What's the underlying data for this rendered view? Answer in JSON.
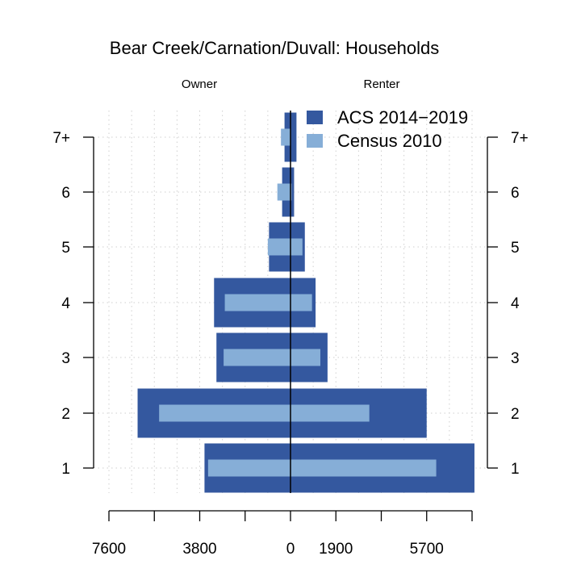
{
  "chart_data": {
    "type": "bar",
    "orientation": "horizontal-pyramid",
    "title": "Bear Creek/Carnation/Duvall: Households",
    "left_label": "Owner",
    "right_label": "Renter",
    "categories": [
      "1",
      "2",
      "3",
      "4",
      "5",
      "6",
      "7+"
    ],
    "x_ticks": [
      {
        "value": -7600,
        "label": "7600"
      },
      {
        "value": -3800,
        "label": "3800"
      },
      {
        "value": 0,
        "label": "0"
      },
      {
        "value": 1900,
        "label": "1900"
      },
      {
        "value": 5700,
        "label": "5700"
      }
    ],
    "xlim": [
      -7600,
      7600
    ],
    "grid": true,
    "legend_position": "top-right",
    "series": [
      {
        "name": "ACS 2014−2019",
        "color": "#34589f",
        "owner": [
          3600,
          6400,
          3100,
          3200,
          900,
          350,
          250
        ],
        "renter": [
          7700,
          5700,
          1550,
          1050,
          600,
          150,
          250
        ]
      },
      {
        "name": "Census 2010",
        "color": "#86aed7",
        "owner": [
          3450,
          5500,
          2800,
          2750,
          950,
          550,
          400
        ],
        "renter": [
          6100,
          3300,
          1250,
          900,
          500,
          50,
          0
        ]
      }
    ]
  }
}
